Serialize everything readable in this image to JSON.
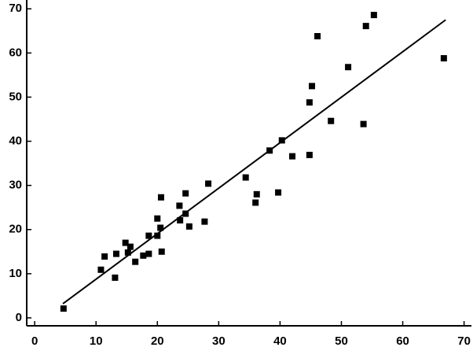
{
  "chart_data": {
    "type": "scatter",
    "x": [
      4.7,
      10.8,
      11.4,
      13.1,
      13.3,
      14.8,
      15.2,
      15.6,
      16.4,
      17.7,
      18.6,
      18.6,
      20.0,
      20.0,
      20.5,
      20.6,
      20.7,
      23.6,
      23.7,
      24.6,
      24.6,
      25.2,
      27.7,
      28.3,
      34.4,
      36.0,
      36.2,
      38.3,
      39.7,
      40.3,
      42.0,
      44.8,
      44.8,
      45.2,
      46.1,
      48.3,
      51.1,
      53.6,
      54.0,
      55.3,
      66.7
    ],
    "y": [
      2.1,
      10.9,
      13.9,
      9.1,
      14.5,
      17.0,
      14.8,
      16.1,
      12.7,
      14.1,
      14.5,
      18.6,
      22.5,
      18.6,
      20.4,
      27.3,
      15.0,
      25.4,
      22.1,
      23.6,
      28.2,
      20.7,
      21.8,
      30.4,
      31.8,
      26.1,
      28.0,
      37.9,
      28.4,
      40.2,
      36.6,
      36.9,
      48.8,
      52.5,
      63.8,
      44.6,
      56.8,
      43.9,
      66.1,
      68.6,
      58.8
    ],
    "color": "#000000",
    "fit_line": {
      "x": [
        4.6,
        67.0
      ],
      "y": [
        3.2,
        67.5
      ],
      "color": "#000000"
    },
    "xlim": [
      -1.3,
      71.2
    ],
    "ylim": [
      -1.8,
      72
    ],
    "xticks": [
      0,
      10,
      20,
      30,
      40,
      50,
      60,
      70
    ],
    "yticks": [
      0,
      10,
      20,
      30,
      40,
      50,
      60,
      70
    ]
  }
}
